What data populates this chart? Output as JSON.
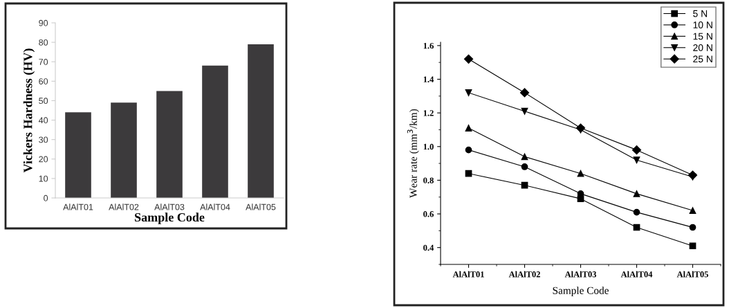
{
  "chart_data": [
    {
      "type": "bar",
      "xlabel": "Sample Code",
      "ylabel": "Vickers Hardness (HV)",
      "categories": [
        "AlAlT01",
        "AlAlT02",
        "AlAlT03",
        "AlAlT04",
        "AlAlT05"
      ],
      "values": [
        44,
        49,
        55,
        68,
        79
      ],
      "color": "#3c3a3c",
      "ylim": [
        0,
        90
      ],
      "yticks": [
        0,
        10,
        20,
        30,
        40,
        50,
        60,
        70,
        80,
        90
      ],
      "grid": false
    },
    {
      "type": "line",
      "xlabel": "Sample Code",
      "ylabel": "Wear rate (mm$^{3}$/km)",
      "categories": [
        "AlAlT01",
        "AlAlT02",
        "AlAlT03",
        "AlAlT04",
        "AlAlT05"
      ],
      "ylim": [
        0.3,
        1.62
      ],
      "yticks": [
        0.4,
        0.6,
        0.8,
        {
          "value": 1.0,
          "label": "1.0"
        },
        1.2,
        1.4,
        1.6
      ],
      "grid": false,
      "legend": "top right",
      "line_style": "solid",
      "series": [
        {
          "name": "5 N",
          "color": "#000000",
          "marker": "square",
          "values": [
            0.84,
            0.77,
            0.69,
            0.52,
            0.41
          ]
        },
        {
          "name": "10 N",
          "color": "#000000",
          "marker": "circle",
          "values": [
            0.98,
            0.88,
            0.72,
            0.61,
            0.52
          ]
        },
        {
          "name": "15 N",
          "color": "#000000",
          "marker": "triangle",
          "values": [
            1.11,
            0.94,
            0.84,
            0.72,
            0.62
          ]
        },
        {
          "name": "20 N",
          "color": "#000000",
          "marker": "triangle_down",
          "values": [
            1.32,
            1.21,
            1.1,
            0.92,
            0.82
          ]
        },
        {
          "name": "25 N",
          "color": "#000000",
          "marker": "diamond",
          "values": [
            1.52,
            1.32,
            1.11,
            0.98,
            0.83
          ]
        }
      ]
    }
  ]
}
